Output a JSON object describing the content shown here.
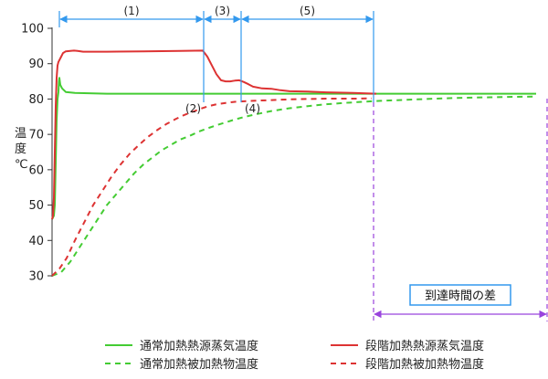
{
  "chart_data": {
    "type": "line",
    "ylabel": "温度℃",
    "ylim": [
      30,
      100
    ],
    "yticks": [
      30,
      40,
      50,
      60,
      70,
      80,
      90,
      100
    ],
    "grid": false,
    "legend_position": "bottom",
    "series": [
      {
        "name": "通常加熱熱源蒸気温度",
        "color": "#44cc33",
        "dash": false,
        "points": [
          [
            0,
            46
          ],
          [
            2,
            47
          ],
          [
            3,
            50
          ],
          [
            4,
            62
          ],
          [
            5,
            74
          ],
          [
            6,
            80
          ],
          [
            7,
            82
          ],
          [
            7.5,
            85
          ],
          [
            8,
            86
          ],
          [
            9,
            84
          ],
          [
            11,
            83
          ],
          [
            15,
            82
          ],
          [
            25,
            81.7
          ],
          [
            60,
            81.5
          ],
          [
            100,
            81.5
          ],
          [
            160,
            81.5
          ],
          [
            230,
            81.5
          ],
          [
            330,
            81.5
          ],
          [
            530,
            81.5
          ]
        ]
      },
      {
        "name": "通常加熱被加熱物温度",
        "color": "#44cc33",
        "dash": true,
        "points": [
          [
            0,
            30
          ],
          [
            10,
            31
          ],
          [
            20,
            34
          ],
          [
            30,
            38
          ],
          [
            40,
            42
          ],
          [
            50,
            46
          ],
          [
            60,
            50
          ],
          [
            70,
            53
          ],
          [
            80,
            56
          ],
          [
            90,
            59
          ],
          [
            100,
            61.5
          ],
          [
            110,
            63.5
          ],
          [
            120,
            65.5
          ],
          [
            130,
            67
          ],
          [
            140,
            68.5
          ],
          [
            150,
            69.5
          ],
          [
            160,
            70.7
          ],
          [
            170,
            71.7
          ],
          [
            180,
            72.6
          ],
          [
            190,
            73.4
          ],
          [
            200,
            74.2
          ],
          [
            210,
            74.9
          ],
          [
            220,
            75.5
          ],
          [
            240,
            76.6
          ],
          [
            260,
            77.4
          ],
          [
            280,
            78
          ],
          [
            300,
            78.5
          ],
          [
            320,
            78.9
          ],
          [
            340,
            79.2
          ],
          [
            360,
            79.5
          ],
          [
            380,
            79.7
          ],
          [
            400,
            79.9
          ],
          [
            420,
            80.1
          ],
          [
            440,
            80.3
          ],
          [
            460,
            80.4
          ],
          [
            480,
            80.5
          ],
          [
            500,
            80.6
          ],
          [
            530,
            80.7
          ]
        ]
      },
      {
        "name": "段階加熱熱源蒸気温度",
        "color": "#dd3333",
        "dash": false,
        "points": [
          [
            0,
            46
          ],
          [
            1,
            47
          ],
          [
            2,
            52
          ],
          [
            3,
            65
          ],
          [
            4,
            78
          ],
          [
            5,
            86
          ],
          [
            6,
            89.5
          ],
          [
            7,
            90.5
          ],
          [
            10,
            92
          ],
          [
            12,
            93
          ],
          [
            15,
            93.5
          ],
          [
            20,
            93.6
          ],
          [
            24,
            93.7
          ],
          [
            28,
            93.6
          ],
          [
            34,
            93.4
          ],
          [
            40,
            93.4
          ],
          [
            60,
            93.4
          ],
          [
            100,
            93.5
          ],
          [
            140,
            93.6
          ],
          [
            165,
            93.7
          ],
          [
            170,
            92
          ],
          [
            175,
            89.5
          ],
          [
            180,
            87
          ],
          [
            185,
            85.3
          ],
          [
            190,
            85
          ],
          [
            195,
            85
          ],
          [
            200,
            85.2
          ],
          [
            205,
            85.3
          ],
          [
            210,
            84.8
          ],
          [
            215,
            84.2
          ],
          [
            220,
            83.5
          ],
          [
            230,
            83
          ],
          [
            240,
            82.9
          ],
          [
            250,
            82.5
          ],
          [
            260,
            82.2
          ],
          [
            280,
            82.1
          ],
          [
            300,
            81.9
          ],
          [
            330,
            81.7
          ],
          [
            355,
            81.5
          ]
        ]
      },
      {
        "name": "段階加熱被加熱物温度",
        "color": "#dd3333",
        "dash": true,
        "points": [
          [
            0,
            30
          ],
          [
            8,
            32
          ],
          [
            16,
            35
          ],
          [
            25,
            40
          ],
          [
            35,
            45
          ],
          [
            45,
            50
          ],
          [
            55,
            54
          ],
          [
            65,
            58
          ],
          [
            75,
            61.5
          ],
          [
            85,
            64.5
          ],
          [
            95,
            67
          ],
          [
            105,
            69.3
          ],
          [
            115,
            71.2
          ],
          [
            125,
            72.9
          ],
          [
            135,
            74.3
          ],
          [
            145,
            75.5
          ],
          [
            155,
            76.5
          ],
          [
            160,
            77
          ],
          [
            170,
            77.9
          ],
          [
            180,
            78.5
          ],
          [
            190,
            78.9
          ],
          [
            200,
            79.2
          ],
          [
            220,
            79.5
          ],
          [
            240,
            79.7
          ],
          [
            260,
            79.9
          ],
          [
            280,
            80
          ],
          [
            300,
            80.1
          ],
          [
            330,
            80.1
          ],
          [
            350,
            80.2
          ]
        ]
      }
    ],
    "segments": [
      {
        "label": "(1)",
        "from": 8,
        "to": 166
      },
      {
        "label": "(3)",
        "from": 166,
        "to": 207
      },
      {
        "label": "(5)",
        "from": 207,
        "to": 352
      }
    ],
    "markers": [
      {
        "label": "(2)",
        "x": 166
      },
      {
        "label": "(4)",
        "x": 207
      },
      {
        "label": "",
        "x": 352
      }
    ],
    "reach_time_difference": {
      "label": "到達時間の差",
      "from": 352,
      "to": 542
    }
  }
}
